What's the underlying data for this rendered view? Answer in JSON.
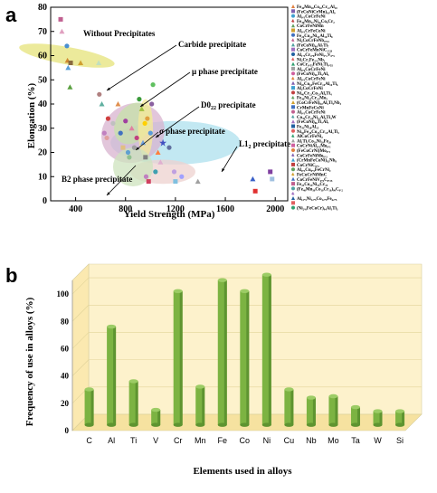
{
  "panels": {
    "a": "a",
    "b": "b"
  },
  "chart_data": [
    {
      "type": "scatter",
      "panel": "a",
      "xlabel": "Yield Strength (MPa)",
      "ylabel": "Elongation (%)",
      "xlim": [
        200,
        2100
      ],
      "ylim": [
        0,
        80
      ],
      "xticks": [
        400,
        800,
        1200,
        1600,
        2000
      ],
      "yticks": [
        0,
        10,
        20,
        30,
        40,
        50,
        60,
        70,
        80
      ],
      "region_labels": [
        "Without  Precipitates",
        "Carbide precipitate",
        "μ phase precipitate",
        "D0",
        "22",
        " precipitate",
        "σ phase precipitate",
        "L1",
        "2",
        " precipitate",
        "B2 phase precipitate"
      ],
      "region_colors": {
        "without": "#e6e37a",
        "carbide": "#d8b3cf",
        "mu": "#c6e2a8",
        "d022": "#f6e99a",
        "sigma": "#eed2cf",
        "l12": "#aee0ee",
        "b2": "#cde3bd"
      },
      "points": [
        {
          "x": 280,
          "y": 75,
          "c": "#c06090",
          "s": "s"
        },
        {
          "x": 290,
          "y": 70,
          "c": "#e0a0c0",
          "s": "t"
        },
        {
          "x": 330,
          "y": 64,
          "c": "#4a90d0",
          "s": "c"
        },
        {
          "x": 335,
          "y": 58,
          "c": "#d08a30",
          "s": "t"
        },
        {
          "x": 340,
          "y": 55,
          "c": "#5aa0d8",
          "s": "t"
        },
        {
          "x": 355,
          "y": 47,
          "c": "#5aa040",
          "s": "t"
        },
        {
          "x": 360,
          "y": 57,
          "c": "#8a6a40",
          "s": "s"
        },
        {
          "x": 440,
          "y": 57,
          "c": "#d0a030",
          "s": "t"
        },
        {
          "x": 585,
          "y": 57,
          "c": "#c0e0c0",
          "s": "t"
        },
        {
          "x": 590,
          "y": 44,
          "c": "#b08080",
          "s": "c"
        },
        {
          "x": 610,
          "y": 40,
          "c": "#60b0a0",
          "s": "t"
        },
        {
          "x": 630,
          "y": 28,
          "c": "#c080c0",
          "s": "c"
        },
        {
          "x": 650,
          "y": 26,
          "c": "#e0a0a0",
          "s": "c"
        },
        {
          "x": 660,
          "y": 34,
          "c": "#d04040",
          "s": "c"
        },
        {
          "x": 700,
          "y": 32,
          "c": "#c0c0c0",
          "s": "c"
        },
        {
          "x": 740,
          "y": 40,
          "c": "#e09050",
          "s": "t"
        },
        {
          "x": 760,
          "y": 28,
          "c": "#4070c0",
          "s": "c"
        },
        {
          "x": 780,
          "y": 22,
          "c": "#e0c080",
          "s": "s"
        },
        {
          "x": 800,
          "y": 33,
          "c": "#a040a0",
          "s": "c"
        },
        {
          "x": 820,
          "y": 20,
          "c": "#60a0d0",
          "s": "c"
        },
        {
          "x": 830,
          "y": 18,
          "c": "#90c090",
          "s": "c"
        },
        {
          "x": 850,
          "y": 30,
          "c": "#e080a0",
          "s": "t"
        },
        {
          "x": 870,
          "y": 22,
          "c": "#a0a0a0",
          "s": "c"
        },
        {
          "x": 890,
          "y": 26,
          "c": "#c04080",
          "s": "c"
        },
        {
          "x": 910,
          "y": 42,
          "c": "#3a9a3a",
          "s": "c"
        },
        {
          "x": 930,
          "y": 38,
          "c": "#a0c040",
          "s": "t"
        },
        {
          "x": 940,
          "y": 24,
          "c": "#70a0e0",
          "s": "t"
        },
        {
          "x": 955,
          "y": 32,
          "c": "#ffd000",
          "s": "c"
        },
        {
          "x": 960,
          "y": 18,
          "c": "#808080",
          "s": "s"
        },
        {
          "x": 965,
          "y": 10,
          "c": "#c080c0",
          "s": "c"
        },
        {
          "x": 975,
          "y": 34,
          "c": "#e0a040",
          "s": "c"
        },
        {
          "x": 985,
          "y": 8,
          "c": "#d04060",
          "s": "s"
        },
        {
          "x": 1000,
          "y": 28,
          "c": "#5a9ad8",
          "s": "c"
        },
        {
          "x": 1010,
          "y": 40,
          "c": "#8a60a0",
          "s": "c"
        },
        {
          "x": 1020,
          "y": 48,
          "c": "#60c060",
          "s": "c"
        },
        {
          "x": 1040,
          "y": 12,
          "c": "#40a0b0",
          "s": "c"
        },
        {
          "x": 1060,
          "y": 20,
          "c": "#ff8040",
          "s": "t"
        },
        {
          "x": 1080,
          "y": 16,
          "c": "#e0b0d0",
          "s": "t"
        },
        {
          "x": 1100,
          "y": 24,
          "c": "#4050c0",
          "s": "star"
        },
        {
          "x": 1150,
          "y": 22,
          "c": "#6070a0",
          "s": "c"
        },
        {
          "x": 1190,
          "y": 12,
          "c": "#c0a0e0",
          "s": "c"
        },
        {
          "x": 1200,
          "y": 8,
          "c": "#80c0e0",
          "s": "s"
        },
        {
          "x": 1250,
          "y": 10,
          "c": "#a0a0ff",
          "s": "c"
        },
        {
          "x": 1380,
          "y": 8,
          "c": "#a0a0a0",
          "s": "t"
        },
        {
          "x": 1820,
          "y": 9,
          "c": "#3a60c8",
          "s": "t"
        },
        {
          "x": 1840,
          "y": 4,
          "c": "#e03030",
          "s": "s"
        },
        {
          "x": 1960,
          "y": 12,
          "c": "#8040a0",
          "s": "s"
        },
        {
          "x": 1975,
          "y": 9,
          "c": "#a0c0e0",
          "s": "s"
        }
      ],
      "legend": [
        "Fe₄₀Mn₂₈Co₁₀Cr₁₂Al₁₀",
        "(FeCoNiCrMn)₉₁Al₉",
        "Al₀.₃CoCrFeNi",
        "Fe₄₀Mn₂₇Ni₂₆Co₅Cr₂",
        "CoCrFeNiMn",
        "Al₀.₃CrFeCoNi",
        "Fe₂₀Co₂₀Ni₄₁Al₁₈Ti₈",
        "Ni₂CoCrFeNb₀.₁₅",
        "(FeCoNi)₈₆Al₇Ti₇",
        "CoCrFeMnNiC₁.₂₀",
        "Al₁.₅Cr₀.₈FeNi₃.₂V₀.₅",
        "Ni₂Cr₂Fe₃.₂Nb₃",
        "CoCr₀.₅₅FeNi₂Ti₀.₅₅",
        "Al₀.₅CoCrFeNi",
        "(FeCoNi)₉₀Ti₅Al₅",
        "Al₀.₃CoCrFeNi",
        "Ni₂₀Co₁₀FeCr₁₀Al₁₀Ti₆",
        "Al₂CoCrFeNi",
        "Ni₄₆Cr₂₃Co₂₃Al₄Ti₄",
        "Fe₄₀Ni₂₅Cr₁₅Mo₅",
        "(CoCrFeNi)₉₄Al₃Ti₃Nb₃",
        "CrMnFeCoNi",
        "Al₀.₃CoCrFeNi",
        "Co₃₅Cr₂₄Ni₁₁Al₄Ti₄W",
        "(FeCoNi)₈₆Ti₇Al₇",
        "Fe₄₁Ni₂₈Al₁₅",
        "Ni₃₀Fe₂₈Co₂₅Cr₁₄Al₁Ti₂",
        "AlCoCrFeNi₂",
        "Al₁Ti₁Co₂₀Ni₂₀Fe₂₀",
        "CoCrNiAl₀.₁Mo₀.₁",
        "(FeCoCrNi)Mo₀.₃",
        "CoCrFeNiMo₀.₃",
        "(CrMnFeCoNi)₉₂Nb₈",
        "CoCrNiC₀.₅",
        "Al₀.₃Cu₀.₅FeCrNi₂",
        "FeCoCrNiMnC",
        "CoCrFeNiV₀.₅C₀.₂₅",
        "Fe₂₅Co₂₅Ni₂₅Cr₂₅",
        "(Fe₄₀Mn₃₀Co₁₀Cr₁₀)₉₉C₀.₂",
        "",
        "Al₁₂.₅Ni₁₂.₅Co₁₂.₅Fe₆₂.₅",
        "",
        "(Ni₂.₀FeCoCr)₉₄Al₃Ti₃"
      ]
    },
    {
      "type": "bar",
      "panel": "b",
      "xlabel": "Elements used in alloys",
      "ylabel": "Frequency of use in alloys (%)",
      "ylim": [
        0,
        110
      ],
      "yticks": [
        0,
        20,
        40,
        60,
        80,
        100
      ],
      "categories": [
        "C",
        "Al",
        "Ti",
        "V",
        "Cr",
        "Mn",
        "Fe",
        "Co",
        "Ni",
        "Cu",
        "Nb",
        "Mo",
        "Ta",
        "W",
        "Si"
      ],
      "values": [
        26,
        72,
        32,
        11,
        98,
        28,
        106,
        98,
        110,
        26,
        20,
        21,
        13,
        10,
        10
      ],
      "bar_color": "#7cb342",
      "background_color": "#fdf2cc"
    }
  ]
}
